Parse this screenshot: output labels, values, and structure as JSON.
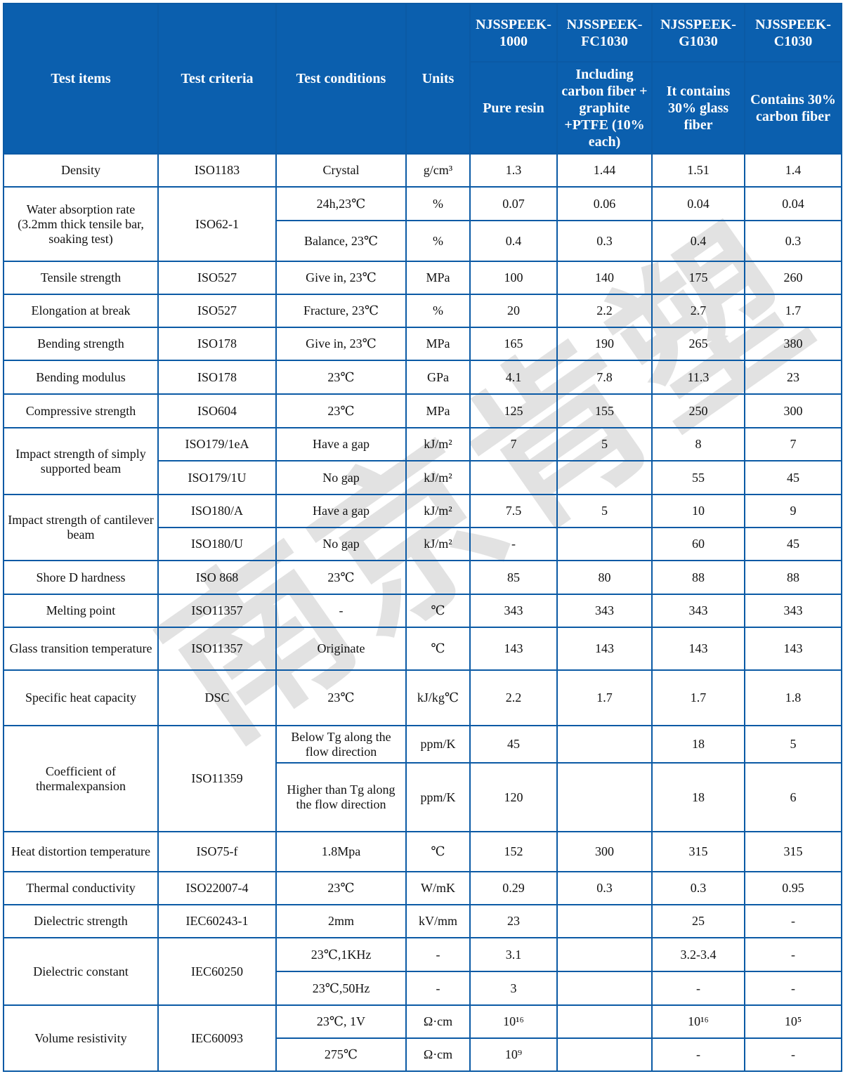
{
  "header": {
    "item": "Test items",
    "criteria": "Test criteria",
    "conditions": "Test conditions",
    "units": "Units",
    "products": [
      {
        "name": "NJSSPEEK-1000",
        "desc": "Pure resin"
      },
      {
        "name": "NJSSPEEK-FC1030",
        "desc": "Including carbon fiber + graphite +PTFE (10% each)"
      },
      {
        "name": "NJSSPEEK-G1030",
        "desc": "It contains 30% glass fiber"
      },
      {
        "name": "NJSSPEEK-C1030",
        "desc": "Contains 30% carbon fiber"
      }
    ]
  },
  "groups": [
    {
      "item": "Density",
      "criteria": "ISO1183",
      "sub": [
        {
          "conditions": "Crystal",
          "units": "g/cm³",
          "values": [
            "1.3",
            "1.44",
            "1.51",
            "1.4"
          ]
        }
      ]
    },
    {
      "item": "Water absorption rate (3.2mm thick tensile bar, soaking test)",
      "criteria": "ISO62-1",
      "sub": [
        {
          "conditions": "24h,23℃",
          "units": "%",
          "values": [
            "0.07",
            "0.06",
            "0.04",
            "0.04"
          ]
        },
        {
          "conditions": "Balance, 23℃",
          "units": "%",
          "values": [
            "0.4",
            "0.3",
            "0.4",
            "0.3"
          ]
        }
      ]
    },
    {
      "item": "Tensile strength",
      "criteria": "ISO527",
      "sub": [
        {
          "conditions": "Give in, 23℃",
          "units": "MPa",
          "values": [
            "100",
            "140",
            "175",
            "260"
          ]
        }
      ]
    },
    {
      "item": "Elongation at break",
      "criteria": "ISO527",
      "sub": [
        {
          "conditions": "Fracture, 23℃",
          "units": "%",
          "values": [
            "20",
            "2.2",
            "2.7",
            "1.7"
          ]
        }
      ]
    },
    {
      "item": "Bending strength",
      "criteria": "ISO178",
      "sub": [
        {
          "conditions": "Give in, 23℃",
          "units": "MPa",
          "values": [
            "165",
            "190",
            "265",
            "380"
          ]
        }
      ]
    },
    {
      "item": "Bending modulus",
      "criteria": "ISO178",
      "sub": [
        {
          "conditions": "23℃",
          "units": "GPa",
          "values": [
            "4.1",
            "7.8",
            "11.3",
            "23"
          ]
        }
      ]
    },
    {
      "item": "Compressive strength",
      "criteria": "ISO604",
      "sub": [
        {
          "conditions": "23℃",
          "units": "MPa",
          "values": [
            "125",
            "155",
            "250",
            "300"
          ]
        }
      ]
    },
    {
      "item": "Impact strength of simply supported beam",
      "sub": [
        {
          "criteria": "ISO179/1eA",
          "conditions": "Have a gap",
          "units": "kJ/m²",
          "values": [
            "7",
            "5",
            "8",
            "7"
          ]
        },
        {
          "criteria": "ISO179/1U",
          "conditions": "No gap",
          "units": "kJ/m²",
          "values": [
            "",
            "",
            "55",
            "45"
          ]
        }
      ]
    },
    {
      "item": "Impact strength of cantilever beam",
      "sub": [
        {
          "criteria": "ISO180/A",
          "conditions": "Have a gap",
          "units": "kJ/m²",
          "values": [
            "7.5",
            "5",
            "10",
            "9"
          ]
        },
        {
          "criteria": "ISO180/U",
          "conditions": "No gap",
          "units": "kJ/m²",
          "values": [
            "-",
            "",
            "60",
            "45"
          ]
        }
      ]
    },
    {
      "item": "Shore D hardness",
      "criteria": "ISO 868",
      "sub": [
        {
          "conditions": "23℃",
          "units": "",
          "values": [
            "85",
            "80",
            "88",
            "88"
          ]
        }
      ]
    },
    {
      "item": "Melting point",
      "criteria": "ISO11357",
      "sub": [
        {
          "conditions": "-",
          "units": "℃",
          "values": [
            "343",
            "343",
            "343",
            "343"
          ]
        }
      ]
    },
    {
      "item": "Glass transition temperature",
      "criteria": "ISO11357",
      "sub": [
        {
          "conditions": "Originate",
          "units": "℃",
          "values": [
            "143",
            "143",
            "143",
            "143"
          ]
        }
      ]
    },
    {
      "item": "Specific heat capacity",
      "criteria": "DSC",
      "sub": [
        {
          "conditions": "23℃",
          "units": "kJ/kg℃",
          "values": [
            "2.2",
            "1.7",
            "1.7",
            "1.8"
          ]
        }
      ]
    },
    {
      "item": "Coefficient of thermalexpansion",
      "criteria": "ISO11359",
      "sub": [
        {
          "conditions": "Below Tg along the flow direction",
          "units": "ppm/K",
          "values": [
            "45",
            "",
            "18",
            "5"
          ]
        },
        {
          "conditions": "Higher than Tg along the flow direction",
          "units": "ppm/K",
          "values": [
            "120",
            "",
            "18",
            "6"
          ]
        }
      ]
    },
    {
      "item": "Heat distortion temperature",
      "criteria": "ISO75-f",
      "sub": [
        {
          "conditions": "1.8Mpa",
          "units": "℃",
          "values": [
            "152",
            "300",
            "315",
            "315"
          ]
        }
      ]
    },
    {
      "item": "Thermal conductivity",
      "criteria": "ISO22007-4",
      "sub": [
        {
          "conditions": "23℃",
          "units": "W/mK",
          "values": [
            "0.29",
            "0.3",
            "0.3",
            "0.95"
          ]
        }
      ]
    },
    {
      "item": "Dielectric strength",
      "criteria": "IEC60243-1",
      "sub": [
        {
          "conditions": "2mm",
          "units": "kV/mm",
          "values": [
            "23",
            "",
            "25",
            "-"
          ]
        }
      ]
    },
    {
      "item": "Dielectric constant",
      "criteria": "IEC60250",
      "sub": [
        {
          "conditions": "23℃,1KHz",
          "units": "-",
          "values": [
            "3.1",
            "",
            "3.2-3.4",
            "-"
          ]
        },
        {
          "conditions": "23℃,50Hz",
          "units": "-",
          "values": [
            "3",
            "",
            "-",
            "-"
          ]
        }
      ]
    },
    {
      "item": "Volume resistivity",
      "criteria": "IEC60093",
      "sub": [
        {
          "conditions": "23℃, 1V",
          "units": "Ω·cm",
          "values": [
            "10¹⁶",
            "",
            "10¹⁶",
            "10⁵"
          ]
        },
        {
          "conditions": "275℃",
          "units": "Ω·cm",
          "values": [
            "10⁹",
            "",
            "-",
            "-"
          ]
        }
      ]
    }
  ],
  "watermark": "南京肯塑",
  "colors": {
    "header_bg": "#0b5fae",
    "border": "#0b5aa5",
    "header_text": "#ffffff"
  }
}
